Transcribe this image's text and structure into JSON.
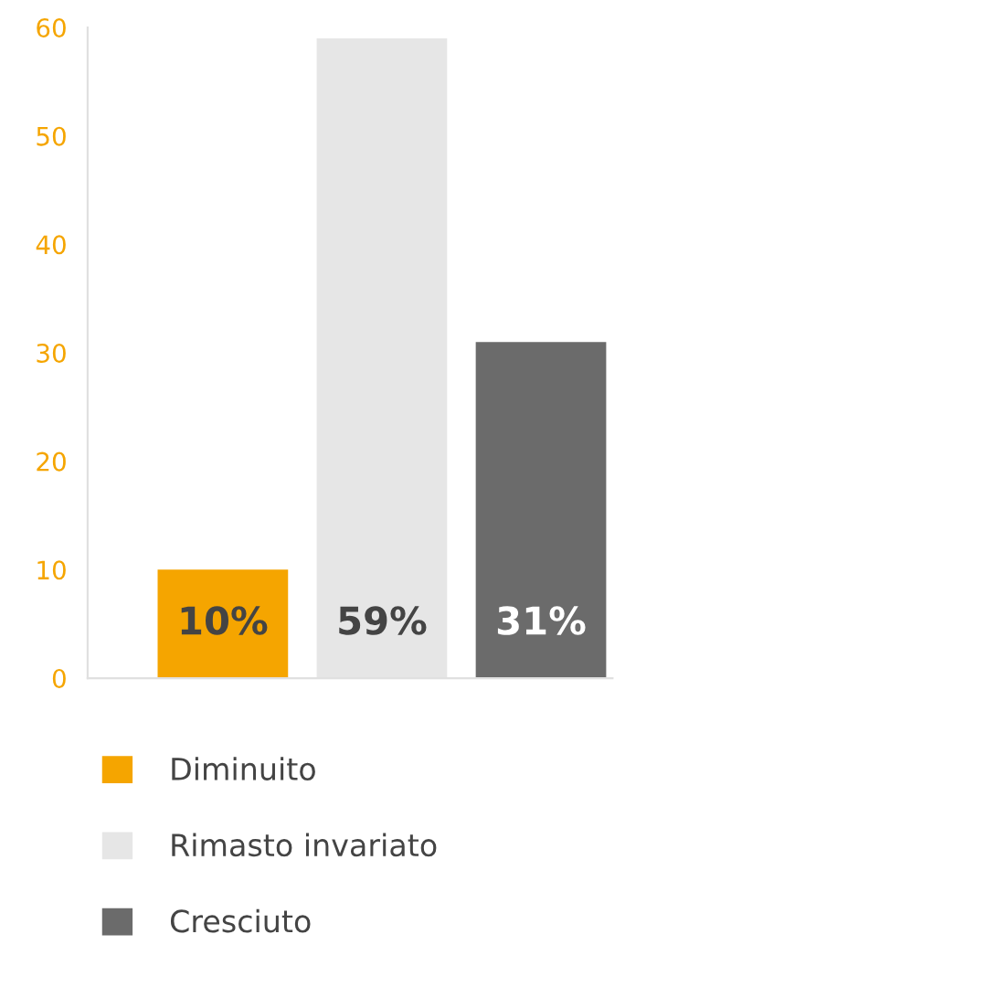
{
  "chart_data": {
    "type": "bar",
    "categories": [
      null,
      null,
      null
    ],
    "series": [
      {
        "name": "Diminuito",
        "color": "#f5a500",
        "values": [
          10,
          null,
          null
        ],
        "value_labels": [
          "10%",
          null,
          null
        ]
      },
      {
        "name": "Rimasto invariato",
        "color": "#e6e6e6",
        "values": [
          null,
          59,
          null
        ],
        "value_labels": [
          null,
          "59%",
          null
        ]
      },
      {
        "name": "Cresciuto",
        "color": "#6b6b6b",
        "values": [
          null,
          null,
          31
        ],
        "value_labels": [
          null,
          null,
          "31%"
        ]
      }
    ],
    "ylim": [
      0,
      60
    ],
    "yticks": [
      0,
      10,
      20,
      30,
      40,
      50,
      60
    ],
    "grid": false,
    "legend": "bottom"
  }
}
